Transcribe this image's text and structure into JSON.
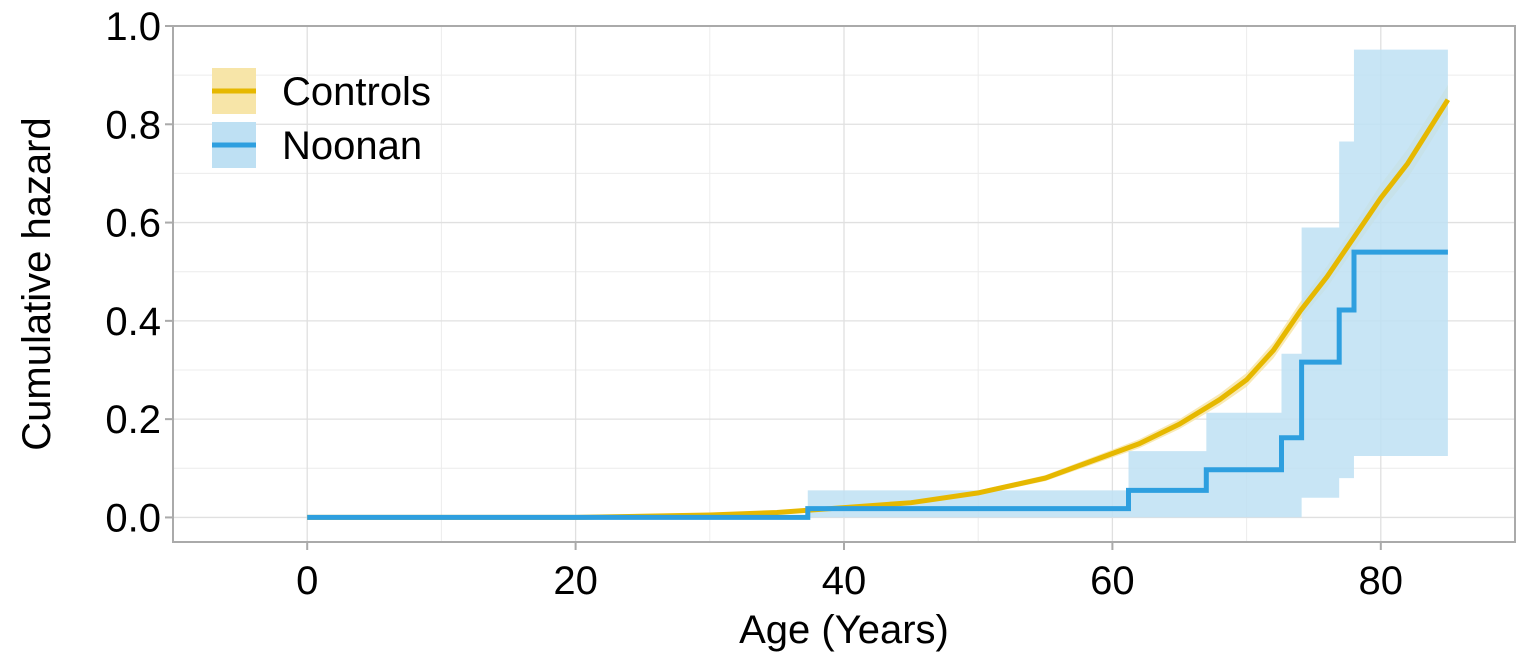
{
  "chart_data": {
    "type": "line",
    "title": "",
    "xlabel": "Age (Years)",
    "ylabel": "Cumulative hazard",
    "xlim": [
      -10,
      90
    ],
    "ylim": [
      -0.05,
      1.0
    ],
    "x_ticks": [
      0,
      20,
      40,
      60,
      80
    ],
    "x_tick_labels": [
      "0",
      "20",
      "40",
      "60",
      "80"
    ],
    "y_ticks": [
      0.0,
      0.2,
      0.4,
      0.6,
      0.8,
      1.0
    ],
    "y_tick_labels": [
      "0.0",
      "0.2",
      "0.4",
      "0.6",
      "0.8",
      "1.0"
    ],
    "grid": true,
    "legend_position": "top-left",
    "series": [
      {
        "name": "Controls",
        "color": "#E6B800",
        "band_color": "#F7E5A8",
        "step": false,
        "x": [
          0,
          20,
          30,
          35,
          40,
          45,
          50,
          55,
          60,
          62,
          65,
          68,
          70,
          72,
          74,
          76,
          78,
          80,
          82,
          85
        ],
        "y": [
          0.0,
          0.0,
          0.005,
          0.01,
          0.02,
          0.03,
          0.05,
          0.08,
          0.13,
          0.15,
          0.19,
          0.24,
          0.28,
          0.34,
          0.42,
          0.49,
          0.57,
          0.65,
          0.72,
          0.85
        ],
        "lower": [
          0.0,
          0.0,
          0.004,
          0.008,
          0.017,
          0.027,
          0.045,
          0.074,
          0.122,
          0.141,
          0.18,
          0.228,
          0.266,
          0.324,
          0.402,
          0.468,
          0.546,
          0.622,
          0.69,
          0.82
        ],
        "upper": [
          0.0,
          0.0,
          0.006,
          0.012,
          0.023,
          0.033,
          0.055,
          0.086,
          0.138,
          0.159,
          0.2,
          0.252,
          0.294,
          0.356,
          0.438,
          0.512,
          0.594,
          0.678,
          0.75,
          0.88
        ]
      },
      {
        "name": "Noonan",
        "color": "#2E9FDF",
        "band_color": "#BEE0F3",
        "step": true,
        "x": [
          0,
          37.3,
          61.2,
          67.0,
          72.6,
          74.1,
          76.9,
          78.0,
          85.0
        ],
        "y": [
          0.0,
          0.018,
          0.055,
          0.097,
          0.162,
          0.316,
          0.422,
          0.54,
          0.54
        ],
        "lower": [
          0.0,
          0.0,
          0.0,
          0.0,
          0.0,
          0.04,
          0.08,
          0.125,
          0.125
        ],
        "upper": [
          0.0,
          0.055,
          0.135,
          0.213,
          0.333,
          0.59,
          0.765,
          0.952,
          0.952
        ]
      }
    ]
  }
}
